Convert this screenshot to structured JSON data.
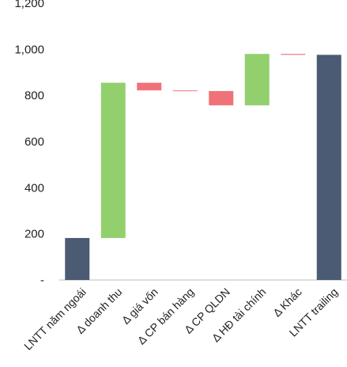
{
  "chart_data": {
    "type": "waterfall",
    "title_fragment": "",
    "y_tick_labels": [
      "-",
      "200",
      "400",
      "600",
      "800",
      "1,000",
      "1,200"
    ],
    "ylim": [
      0,
      1200
    ],
    "y_ticks": [
      0,
      200,
      400,
      600,
      800,
      1000,
      1200
    ],
    "grid": false,
    "categories": [
      "LNTT năm ngoái",
      "Δ doanh thu",
      "Δ giá vốn",
      "Δ CP bán hàng",
      "Δ CP QLDN",
      "Δ HĐ tài chính",
      "Δ Khác",
      "LNTT trailing"
    ],
    "bars": [
      {
        "category": "LNTT năm ngoái",
        "kind": "total",
        "start": 0,
        "end": 182
      },
      {
        "category": "Δ doanh thu",
        "kind": "increase",
        "start": 182,
        "end": 855
      },
      {
        "category": "Δ giá vốn",
        "kind": "decrease",
        "start": 855,
        "end": 822
      },
      {
        "category": "Δ CP bán hàng",
        "kind": "decrease",
        "start": 822,
        "end": 819
      },
      {
        "category": "Δ CP QLDN",
        "kind": "decrease",
        "start": 819,
        "end": 757
      },
      {
        "category": "Δ HĐ tài chính",
        "kind": "increase",
        "start": 757,
        "end": 980
      },
      {
        "category": "Δ Khác",
        "kind": "decrease",
        "start": 980,
        "end": 976
      },
      {
        "category": "LNTT trailing",
        "kind": "total",
        "start": 0,
        "end": 976
      }
    ],
    "colors": {
      "total": "#4a5b73",
      "increase": "#92d06e",
      "decrease": "#f07278",
      "axis": "#bfbfbf",
      "text": "#222222"
    }
  }
}
